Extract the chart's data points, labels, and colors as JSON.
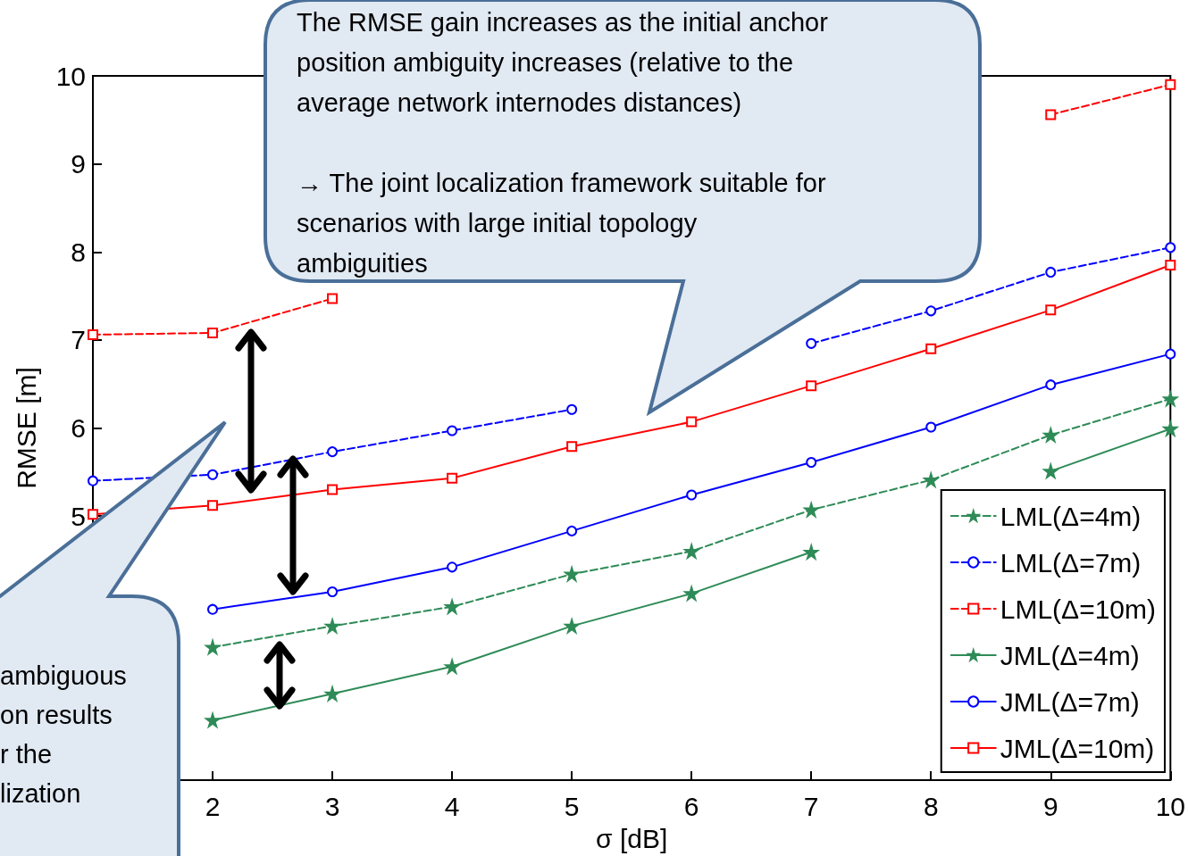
{
  "chart_data": {
    "type": "line",
    "xlabel": "σ [dB]",
    "ylabel": "RMSE [m]",
    "x": [
      1,
      2,
      3,
      4,
      5,
      6,
      7,
      8,
      9,
      10
    ],
    "xlim": [
      1,
      10
    ],
    "xticks": [
      {
        "value": 1,
        "label": null
      },
      2,
      3,
      4,
      5,
      6,
      7,
      8,
      9,
      10
    ],
    "ylim": [
      2,
      10
    ],
    "yticks": [
      5,
      6,
      7,
      8,
      9,
      10
    ],
    "grid": false,
    "legend": "bottom right",
    "series": [
      {
        "name": "LML(Δ=4m)",
        "color": "#2e8b57",
        "marker": "star",
        "line_style": "dashed",
        "values": [
          null,
          3.51,
          3.75,
          3.97,
          4.34,
          4.6,
          5.07,
          5.41,
          5.92,
          6.33
        ]
      },
      {
        "name": "LML(Δ=7m)",
        "color": "#0000ff",
        "marker": "circle",
        "line_style": "dashed",
        "values": [
          5.4,
          5.47,
          5.73,
          5.97,
          6.21,
          null,
          6.96,
          7.33,
          7.77,
          8.05
        ]
      },
      {
        "name": "LML(Δ=10m)",
        "color": "#ff0000",
        "marker": "square",
        "line_style": "dashed",
        "values": [
          7.06,
          7.08,
          7.47,
          null,
          null,
          null,
          null,
          null,
          9.56,
          9.9
        ]
      },
      {
        "name": "JML(Δ=4m)",
        "color": "#2e8b57",
        "marker": "star",
        "line_style": "solid",
        "values": [
          null,
          2.68,
          2.98,
          3.29,
          3.75,
          4.12,
          4.59,
          null,
          5.51,
          5.99
        ]
      },
      {
        "name": "JML(Δ=7m)",
        "color": "#0000ff",
        "marker": "circle",
        "line_style": "solid",
        "values": [
          null,
          3.94,
          4.14,
          4.42,
          4.83,
          5.24,
          5.61,
          6.01,
          6.49,
          6.84
        ]
      },
      {
        "name": "JML(Δ=10m)",
        "color": "#ff0000",
        "marker": "square",
        "line_style": "solid",
        "values": [
          5.02,
          5.12,
          5.3,
          5.43,
          5.79,
          6.07,
          6.48,
          6.9,
          7.34,
          7.85
        ]
      }
    ],
    "annotations": [
      "The RMSE gain increases as the initial anchor\nposition ambiguity increases (relative to the\naverage network internodes distances)\n\n→ The joint localization framework suitable for\nscenarios with large initial topology\nambiguities",
      "ambiguous\non results\nr the\nlization"
    ]
  }
}
